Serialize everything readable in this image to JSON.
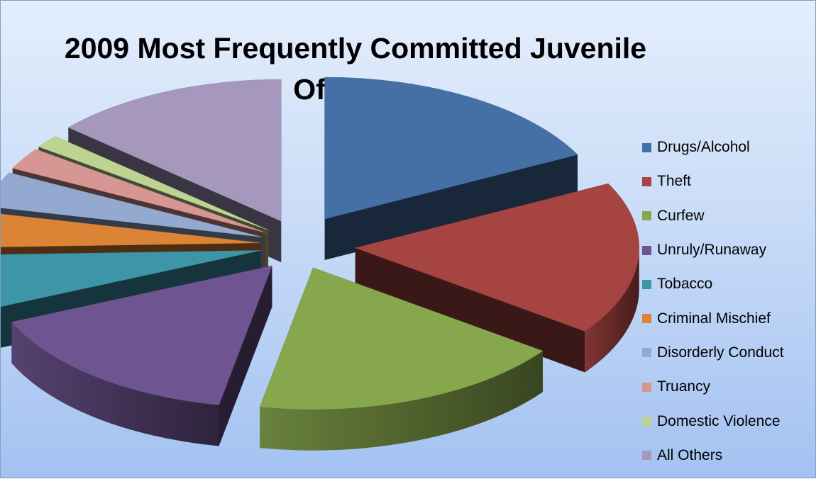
{
  "chart_data": {
    "type": "pie",
    "style": "3d-exploded",
    "title": "2009 Most Frequently Committed Juvenile Offenses",
    "legend_position": "right",
    "series": [
      {
        "name": "Drugs/Alcohol",
        "value": 17.5,
        "color": "#4470a6"
      },
      {
        "name": "Theft",
        "value": 17.5,
        "color": "#a64442"
      },
      {
        "name": "Curfew",
        "value": 18.0,
        "color": "#87a74d"
      },
      {
        "name": "Unruly/Runaway",
        "value": 15.5,
        "color": "#6e5490"
      },
      {
        "name": "Tobacco",
        "value": 6.0,
        "color": "#3f95a8"
      },
      {
        "name": "Criminal Mischief",
        "value": 4.0,
        "color": "#db8436"
      },
      {
        "name": "Disorderly Conduct",
        "value": 4.0,
        "color": "#93a9cf"
      },
      {
        "name": "Truancy",
        "value": 2.5,
        "color": "#d69694"
      },
      {
        "name": "Domestic Violence",
        "value": 1.5,
        "color": "#bdd391"
      },
      {
        "name": "All Others",
        "value": 13.5,
        "color": "#a698bc"
      }
    ]
  }
}
